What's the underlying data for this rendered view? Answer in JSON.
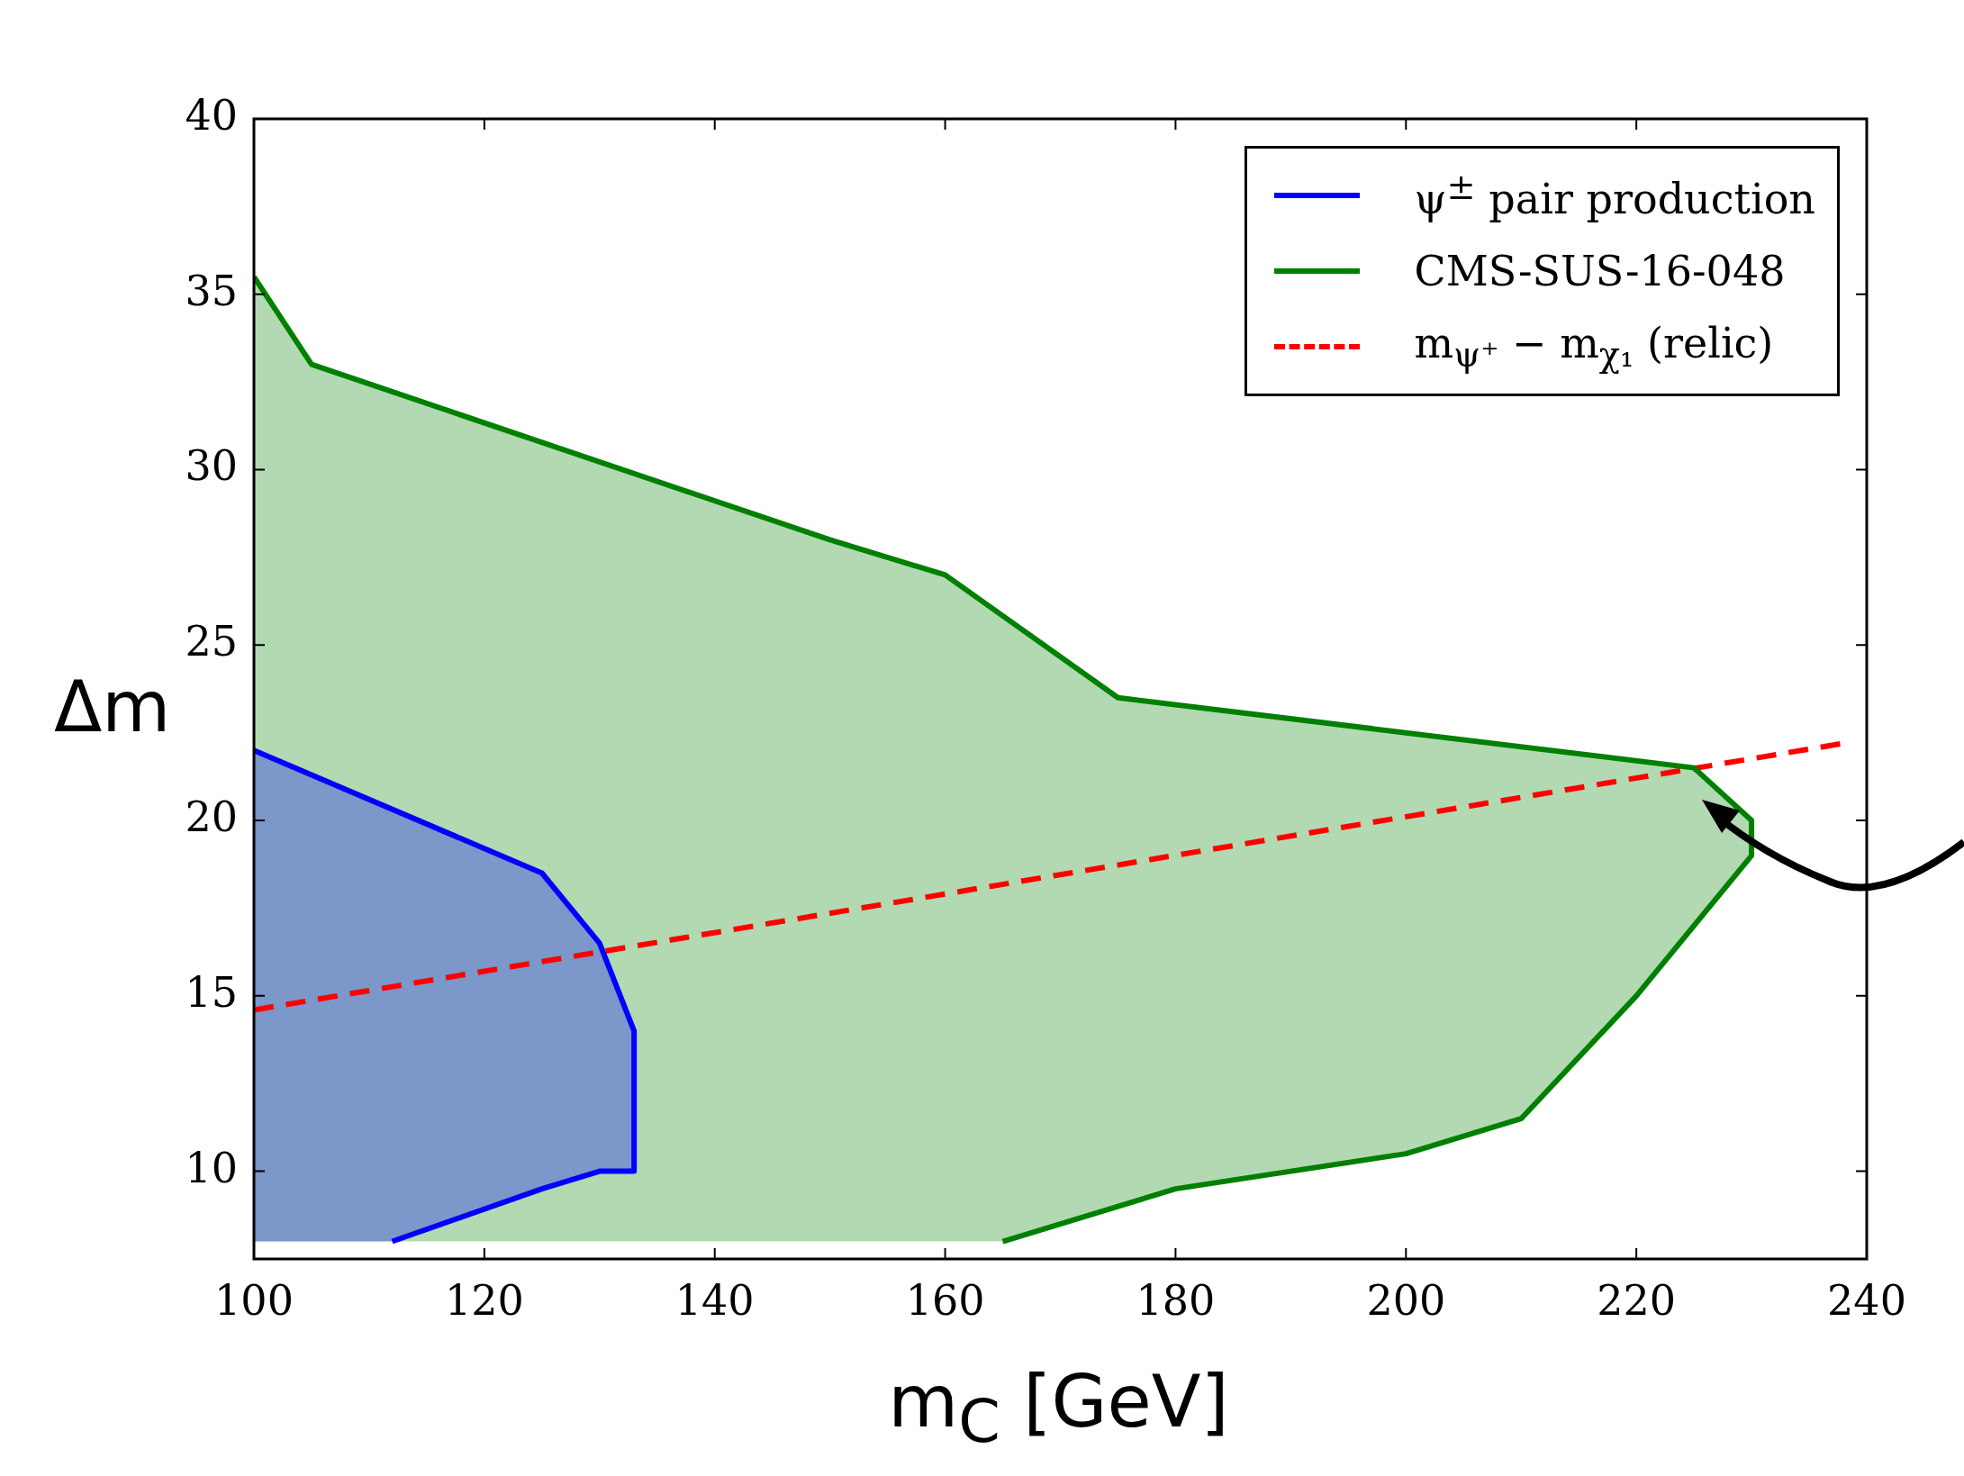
{
  "chart_data": {
    "type": "area",
    "xlabel": "m$_{C}$ [GeV]",
    "ylabel": "Δm",
    "xlim": [
      100,
      240
    ],
    "ylim": [
      7.5,
      40
    ],
    "xticks": [
      100,
      120,
      140,
      160,
      180,
      200,
      220,
      240
    ],
    "yticks": [
      10,
      15,
      20,
      25,
      30,
      35,
      40
    ],
    "grid": false,
    "legend": "top right",
    "marker": "none",
    "series": [
      {
        "name": "CMS-SUS-16-048",
        "color": "#008000",
        "x": [
          100,
          105,
          150,
          160,
          175,
          225,
          230,
          230,
          220,
          210,
          200,
          180,
          165
        ],
        "values": [
          35.5,
          33,
          28,
          27,
          23.5,
          21.5,
          20,
          19,
          15,
          11.5,
          10.5,
          9.5,
          8
        ]
      },
      {
        "name": "ψ$^{±}$ pair production",
        "color": "#0000ff",
        "x": [
          100,
          125,
          130,
          133,
          133,
          130,
          125,
          112
        ],
        "values": [
          22,
          18.5,
          16.5,
          14,
          10,
          10,
          9.5,
          8
        ]
      },
      {
        "name": "m$_{ψ⁺}$ − m$_{χ₁}$ (relic)",
        "type": "line",
        "line_style": "dashed",
        "color": "#ff0000",
        "x": [
          100,
          238
        ],
        "values": [
          14.6,
          22.2
        ]
      }
    ]
  }
}
